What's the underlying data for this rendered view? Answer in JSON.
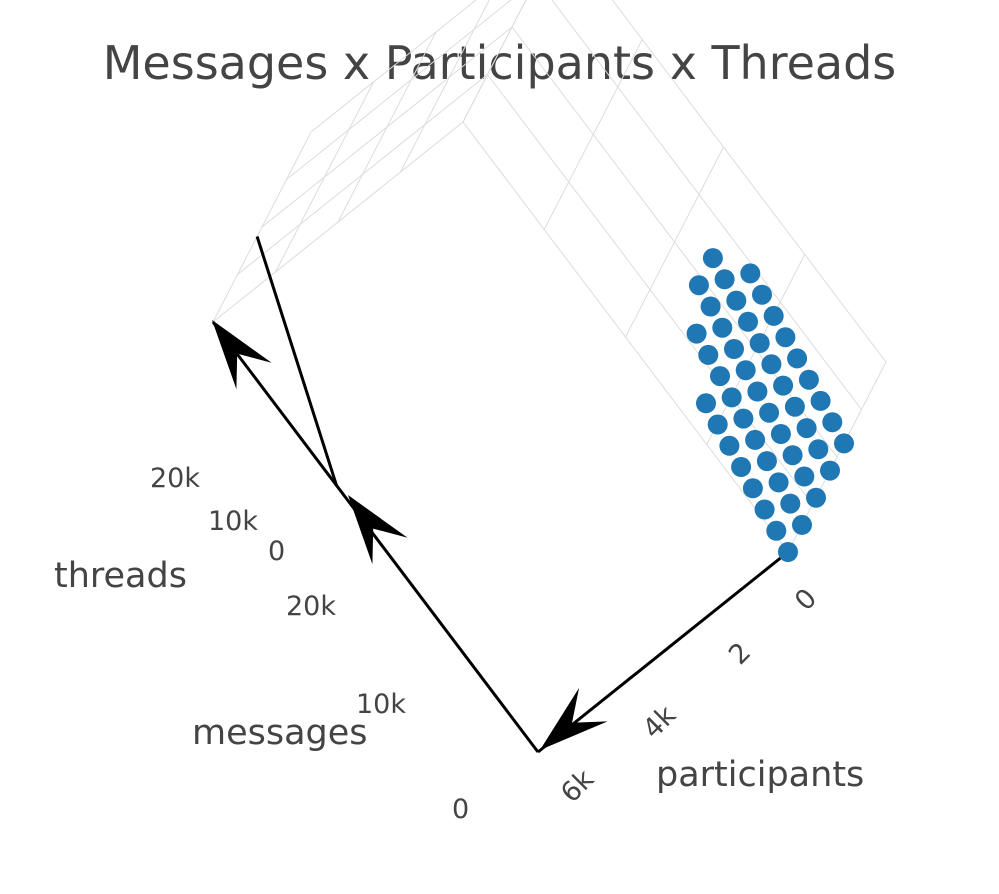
{
  "chart_data": {
    "type": "scatter3d",
    "title": "Messages x Participants x Threads",
    "axes": {
      "x": {
        "label": "participants",
        "range": [
          0,
          7000
        ],
        "ticks": [
          "0",
          "2",
          "4k",
          "6k"
        ]
      },
      "y": {
        "label": "messages",
        "range": [
          0,
          28000
        ],
        "ticks": [
          "0",
          "10k",
          "20k"
        ]
      },
      "z": {
        "label": "threads",
        "range": [
          0,
          28000
        ],
        "ticks": [
          "0",
          "10k",
          "20k"
        ]
      }
    },
    "grid": true,
    "point_color": "#1f77b4",
    "series": [
      {
        "points": [
          [
            0,
            0,
            0
          ],
          [
            150,
            1000,
            1500
          ],
          [
            300,
            2000,
            3000
          ],
          [
            450,
            3000,
            4500
          ],
          [
            600,
            4000,
            6000
          ],
          [
            750,
            5000,
            7500
          ],
          [
            900,
            6000,
            9000
          ],
          [
            1050,
            7000,
            10500
          ]
        ]
      },
      {
        "points": [
          [
            0,
            0,
            4000
          ],
          [
            150,
            1000,
            5500
          ],
          [
            300,
            2000,
            7000
          ],
          [
            450,
            3000,
            8500
          ],
          [
            600,
            4000,
            10000
          ],
          [
            750,
            5000,
            11500
          ],
          [
            900,
            6000,
            13000
          ],
          [
            1050,
            7000,
            14500
          ],
          [
            1200,
            8000,
            16000
          ],
          [
            1350,
            9000,
            17500
          ]
        ]
      },
      {
        "points": [
          [
            0,
            0,
            8000
          ],
          [
            150,
            1000,
            9500
          ],
          [
            300,
            2000,
            11000
          ],
          [
            450,
            3000,
            12500
          ],
          [
            600,
            4000,
            14000
          ],
          [
            750,
            5000,
            15500
          ],
          [
            900,
            6000,
            17000
          ],
          [
            1050,
            7000,
            18500
          ],
          [
            1200,
            8000,
            20000
          ],
          [
            1350,
            9000,
            21500
          ],
          [
            1500,
            10000,
            23000
          ]
        ]
      },
      {
        "points": [
          [
            0,
            0,
            12000
          ],
          [
            150,
            1000,
            13500
          ],
          [
            300,
            2000,
            15000
          ],
          [
            450,
            3000,
            16500
          ],
          [
            600,
            4000,
            18000
          ],
          [
            750,
            5000,
            19500
          ],
          [
            900,
            6000,
            21000
          ],
          [
            1050,
            7000,
            22500
          ],
          [
            1200,
            8000,
            24000
          ],
          [
            1350,
            9000,
            25500
          ],
          [
            1500,
            10000,
            27000
          ]
        ]
      },
      {
        "points": [
          [
            0,
            0,
            16000
          ],
          [
            150,
            1000,
            17500
          ],
          [
            300,
            2000,
            19000
          ],
          [
            450,
            3000,
            20500
          ],
          [
            600,
            4000,
            22000
          ],
          [
            750,
            5000,
            23500
          ],
          [
            900,
            6000,
            25000
          ],
          [
            1050,
            7000,
            26500
          ],
          [
            1200,
            8000,
            28000
          ]
        ]
      }
    ]
  }
}
